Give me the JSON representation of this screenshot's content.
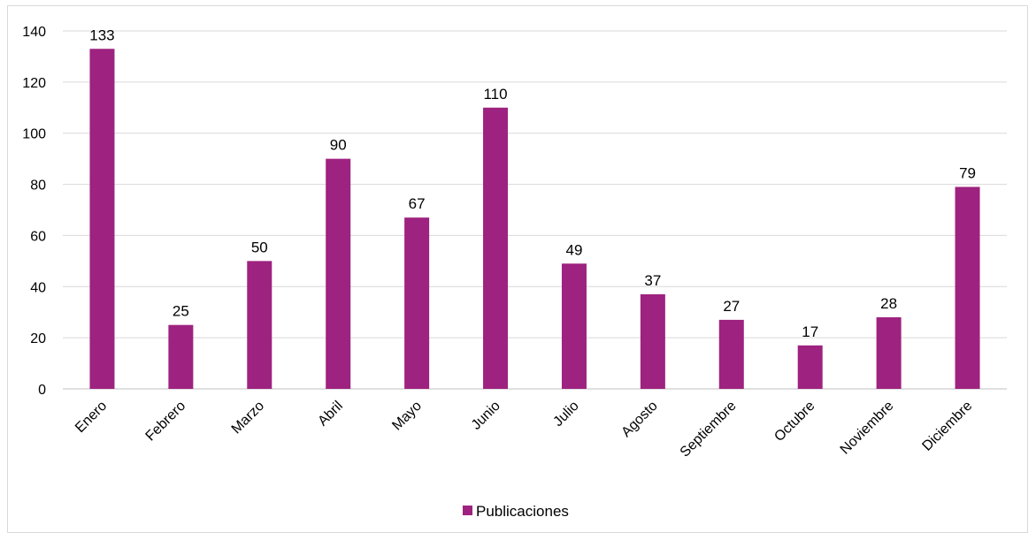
{
  "chart_data": {
    "type": "bar",
    "title": "",
    "xlabel": "",
    "ylabel": "",
    "categories": [
      "Enero",
      "Febrero",
      "Marzo",
      "Abril",
      "Mayo",
      "Junio",
      "Julio",
      "Agosto",
      "Septiembre",
      "Octubre",
      "Noviembre",
      "Diciembre"
    ],
    "series": [
      {
        "name": "Publicaciones",
        "values": [
          133,
          25,
          50,
          90,
          67,
          110,
          49,
          37,
          27,
          17,
          28,
          79
        ]
      }
    ],
    "ylim": [
      0,
      140
    ],
    "yticks": [
      0,
      20,
      40,
      60,
      80,
      100,
      120,
      140
    ],
    "grid": true,
    "legend": "bottom",
    "data_labels": true,
    "colors": {
      "bar": "#9e227f",
      "grid": "#d9d9d9",
      "axis": "#bfbfbf",
      "frame": "#d9d9d9"
    }
  }
}
